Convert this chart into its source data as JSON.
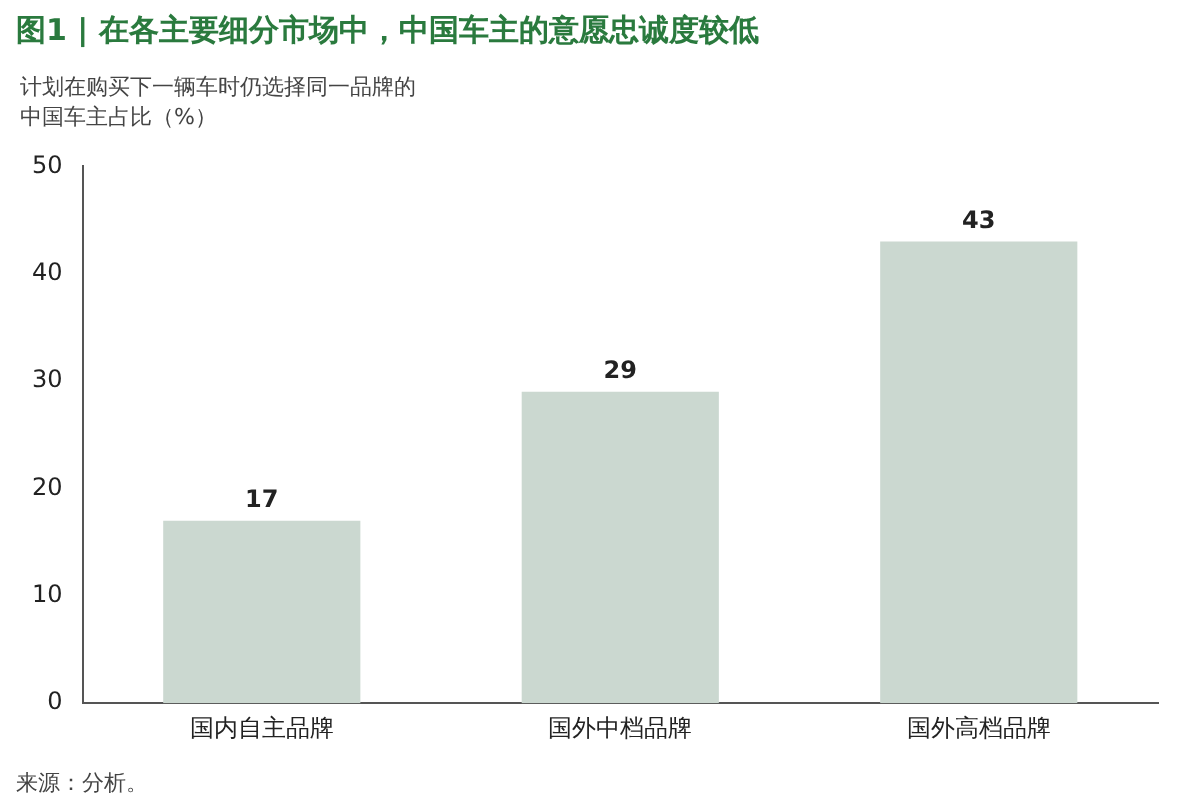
{
  "chart_data": {
    "type": "bar",
    "title": "图1 | 在各主要细分市场中，中国车主的意愿忠诚度较低",
    "ylabel": "计划在购买下一辆车时仍选择同一品牌的中国车主占比（%）",
    "categories": [
      "国内自主品牌",
      "国外中档品牌",
      "国外高档品牌"
    ],
    "values": [
      17,
      29,
      43
    ],
    "color": "#cbd8d0",
    "ylim": [
      0,
      50
    ],
    "yticks": [
      0,
      10,
      20,
      30,
      40,
      50
    ],
    "grid": false,
    "data_labels": true,
    "annotations": [
      "来源：分析。"
    ]
  }
}
